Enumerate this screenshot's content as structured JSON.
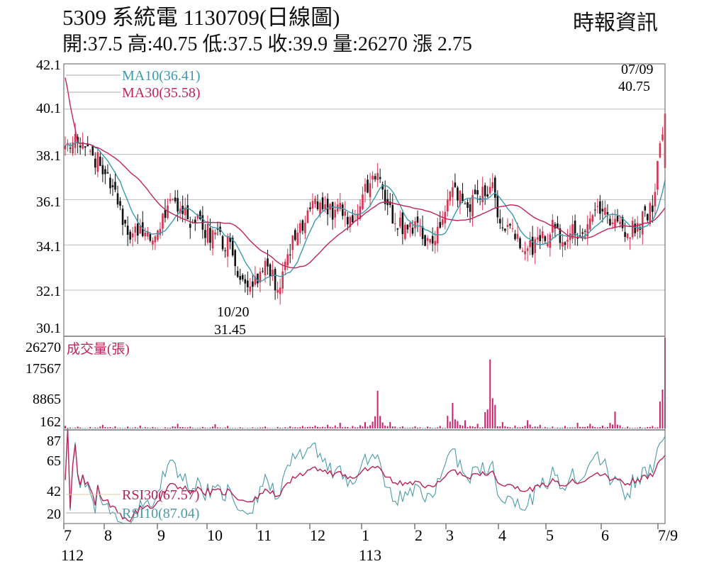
{
  "header": {
    "title": "5309  系統電 1130709(日線圖)",
    "source": "時報資訊",
    "ohlc": "開:37.5 高:40.75 低:37.5 收:39.9 量:26270 漲 2.75"
  },
  "chart_data": {
    "type": "candlestick",
    "colors": {
      "up": "#d8344f",
      "down": "#111111",
      "ma10": "#3a9aae",
      "ma30": "#c0245a",
      "volume": "#d1206a",
      "rsi30": "#b82358",
      "rsi10": "#4a9ca8"
    },
    "price_axis": {
      "ticks": [
        "42.1",
        "40.1",
        "38.1",
        "36.1",
        "34.1",
        "32.1",
        "30.1"
      ],
      "range": [
        30.1,
        42.1
      ]
    },
    "volume_axis": {
      "ticks": [
        "26270",
        "17567",
        "8865",
        "162"
      ],
      "range": [
        162,
        26270
      ]
    },
    "rsi_axis": {
      "ticks": [
        "87",
        "65",
        "42",
        "20"
      ],
      "range": [
        20,
        87
      ]
    },
    "x_ticks": [
      "7",
      "8",
      "9",
      "10",
      "11",
      "12",
      "1",
      "2",
      "3",
      "4",
      "5",
      "6",
      "7/9"
    ],
    "year_labels": [
      "112",
      "113"
    ],
    "legend": {
      "ma10": "MA10(36.41)",
      "ma30": "MA30(35.58)",
      "volume": "成交量(張)",
      "rsi30": "RSI30(67.57)",
      "rsi10": "RSI10(87.04)"
    },
    "annotations": {
      "high_date": "07/09",
      "high_value": "40.75",
      "low_date": "10/20",
      "low_value": "31.45"
    },
    "weekly_close": [
      38.5,
      38.7,
      38.2,
      37.5,
      36.5,
      34.2,
      35,
      34.3,
      35.5,
      36,
      35.3,
      34.8,
      34.5,
      34.2,
      32.8,
      32.6,
      33.2,
      32.3,
      34,
      34.8,
      36.2,
      35.5,
      35.8,
      35.2,
      36.5,
      37.5,
      35.5,
      35,
      34.8,
      34.2,
      34.6,
      36.8,
      35.8,
      36,
      36.8,
      35,
      34.8,
      33.8,
      34.2,
      34.8,
      34.5,
      34.7,
      35.3,
      35.8,
      35,
      34.8,
      35.2,
      35.8,
      39.9
    ],
    "weekly_peak_volume": [
      900,
      700,
      600,
      1200,
      800,
      700,
      1000,
      600,
      500,
      1500,
      700,
      600,
      1400,
      900,
      500,
      500,
      700,
      600,
      800,
      900,
      1000,
      1200,
      1800,
      900,
      2000,
      11000,
      2000,
      800,
      800,
      700,
      900,
      7500,
      2500,
      1500,
      20000,
      2000,
      1000,
      2500,
      1200,
      700,
      900,
      1800,
      1500,
      1000,
      5000,
      700,
      600,
      900,
      26270
    ]
  }
}
